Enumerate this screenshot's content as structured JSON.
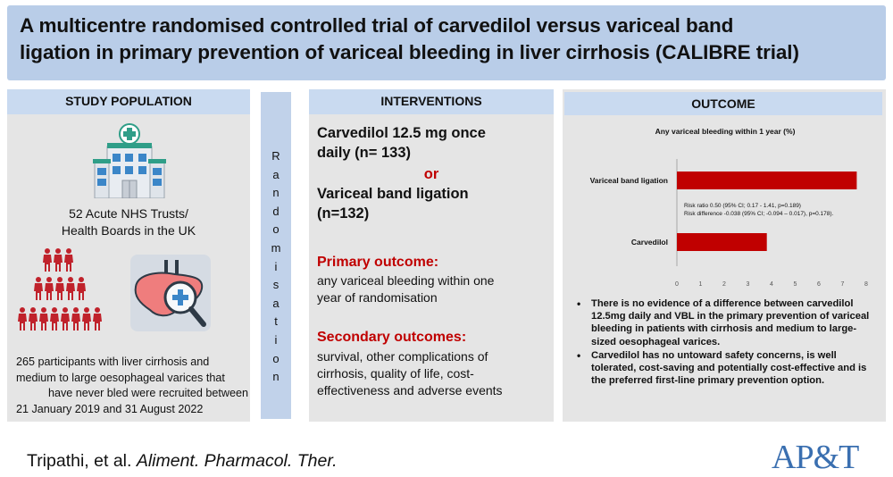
{
  "title": "A multicentre randomised controlled trial of carvedilol versus variceal band ligation in primary prevention of variceal bleeding in liver cirrhosis (CALIBRE trial)",
  "title_lines": [
    "A multicentre randomised controlled trial of carvedilol versus variceal band",
    "ligation in primary prevention of variceal bleeding in liver cirrhosis (CALIBRE trial)"
  ],
  "population": {
    "heading": "STUDY POPULATION",
    "trusts_lines": [
      "52 Acute NHS Trusts/",
      "Health Boards in the UK"
    ],
    "desc_lines": [
      "265 participants with liver cirrhosis and",
      "medium to large oesophageal varices that",
      "have never bled were recruited  between",
      "21 January 2019 and 31 August 2022"
    ],
    "icons": [
      "hospital-icon",
      "people-group-icon",
      "liver-magnifier-icon"
    ]
  },
  "randomisation_letters": [
    "R",
    "a",
    "n",
    "d",
    "o",
    "m",
    "i",
    "s",
    "a",
    "t",
    "i",
    "o",
    "n"
  ],
  "interventions": {
    "heading": "INTERVENTIONS",
    "drug1_lines": [
      "Carvedilol 12.5 mg once",
      "daily (n= 133)"
    ],
    "or": "or",
    "drug2_lines": [
      "Variceal band ligation",
      "(n=132)"
    ],
    "primary_heading": "Primary outcome:",
    "primary_lines": [
      "any variceal bleeding within one",
      "year of randomisation"
    ],
    "secondary_heading": "Secondary outcomes:",
    "secondary_lines": [
      "survival, other complications of",
      "cirrhosis, quality of life, cost-",
      "effectiveness and adverse events"
    ]
  },
  "outcome": {
    "heading": "OUTCOME",
    "bullets": [
      "There is no evidence of a difference between carvedilol 12.5mg daily and VBL in the primary prevention of variceal bleeding in patients with cirrhosis and medium to large-sized oesophageal varices.",
      "Carvedilol has no untoward safety concerns, is well tolerated, cost-saving and potentially cost-effective and is the preferred first-line primary prevention option."
    ]
  },
  "chart_data": {
    "type": "bar",
    "orientation": "horizontal",
    "title": "Any variceal bleeding within 1 year (%)",
    "categories": [
      "Variceal band ligation",
      "Carvedilol"
    ],
    "values": [
      7.6,
      3.8
    ],
    "xlim": [
      0,
      8
    ],
    "xticks": [
      "0",
      "1",
      "2",
      "3",
      "4",
      "5",
      "6",
      "7",
      "8"
    ],
    "grid": false,
    "bar_color": "#c00000",
    "annotation_lines": [
      "Risk ratio 0.50 (95% CI; 0.17 - 1.41, p=0.189)",
      "Risk difference -0.038 (95% CI; -0.094 – 0.017), p=0.178)."
    ]
  },
  "citation": {
    "authors": "Tripathi, et al. ",
    "journal": "Aliment. Pharmacol. Ther."
  },
  "logo_text": "AP&T",
  "colors": {
    "title_bg": "#b9cde8",
    "header_bg": "#c9daf0",
    "panel_bg": "#e5e5e5",
    "accent_red": "#c00000",
    "logo_blue": "#3a6fb0"
  }
}
